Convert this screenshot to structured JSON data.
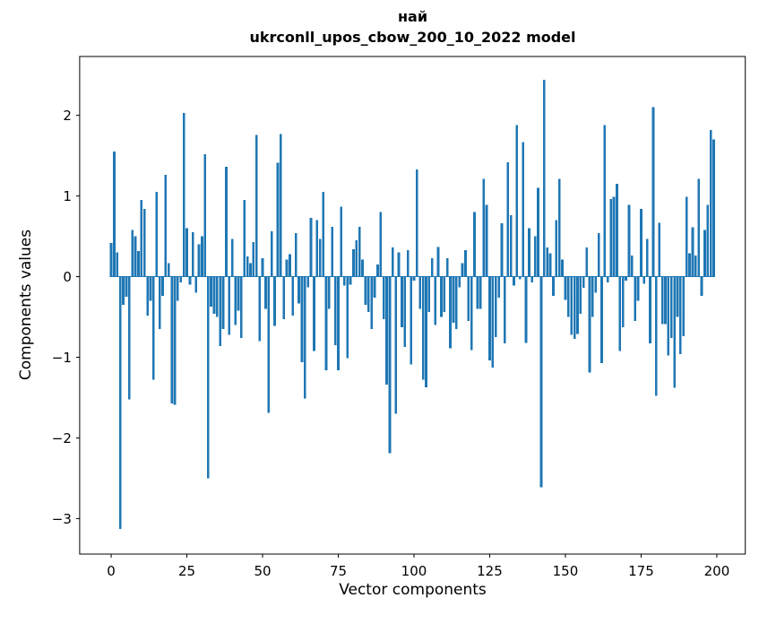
{
  "chart": {
    "title_line1": "най",
    "title_line2": "ukrconll_upos_cbow_200_10_2022 model",
    "xlabel": "Vector components",
    "ylabel": "Components values"
  },
  "chart_data": {
    "type": "bar",
    "title": "най\nukrconll_upos_cbow_200_10_2022 model",
    "xlabel": "Vector components",
    "ylabel": "Components values",
    "x_start": 0,
    "n_bars": 200,
    "bar_color": "#1f77b4",
    "axis_color": "#000000",
    "grid": false,
    "legend": null,
    "xticks": [
      0,
      25,
      50,
      75,
      100,
      125,
      150,
      175,
      200
    ],
    "yticks": [
      -3,
      -2,
      -1,
      0,
      1,
      2
    ],
    "xlim": [
      -10.4,
      209.4
    ],
    "ylim": [
      -3.44,
      2.73
    ],
    "values": [
      0.42,
      1.55,
      0.3,
      -3.13,
      -0.35,
      -0.25,
      -1.52,
      0.58,
      0.5,
      0.32,
      0.95,
      0.84,
      -0.48,
      -0.3,
      -1.28,
      1.05,
      -0.65,
      -0.24,
      1.26,
      0.17,
      -1.57,
      -1.59,
      -0.3,
      -0.07,
      2.03,
      0.6,
      -0.1,
      0.55,
      -0.2,
      0.4,
      0.5,
      1.52,
      -2.5,
      -0.37,
      -0.46,
      -0.5,
      -0.86,
      -0.65,
      1.36,
      -0.72,
      0.47,
      -0.6,
      -0.42,
      -0.76,
      0.95,
      0.25,
      0.17,
      0.43,
      1.76,
      -0.8,
      0.23,
      -0.4,
      -1.69,
      0.56,
      -0.61,
      1.41,
      1.77,
      -0.53,
      0.21,
      0.28,
      -0.48,
      0.54,
      -0.33,
      -1.06,
      -1.51,
      -0.13,
      0.73,
      -0.92,
      0.7,
      0.47,
      1.05,
      -1.16,
      -0.4,
      0.62,
      -0.85,
      -1.16,
      0.87,
      -0.11,
      -1.01,
      -0.1,
      0.34,
      0.45,
      0.62,
      0.21,
      -0.35,
      -0.44,
      -0.65,
      -0.26,
      0.15,
      0.8,
      -0.53,
      -1.34,
      -2.19,
      0.36,
      -1.7,
      0.3,
      -0.63,
      -0.87,
      0.33,
      -1.09,
      -0.05,
      1.33,
      -0.4,
      -1.28,
      -1.37,
      -0.44,
      0.23,
      -0.6,
      0.37,
      -0.5,
      -0.44,
      0.23,
      -0.89,
      -0.57,
      -0.65,
      -0.13,
      0.17,
      0.33,
      -0.55,
      -0.91,
      0.8,
      -0.4,
      -0.4,
      1.21,
      0.89,
      -1.04,
      -1.13,
      -0.75,
      -0.26,
      0.66,
      -0.83,
      1.42,
      0.76,
      -0.11,
      1.88,
      -0.03,
      1.67,
      -0.82,
      0.6,
      -0.07,
      0.5,
      1.1,
      -2.61,
      2.44,
      0.36,
      0.29,
      -0.24,
      0.7,
      1.21,
      0.21,
      -0.29,
      -0.5,
      -0.72,
      -0.77,
      -0.71,
      -0.46,
      -0.14,
      0.36,
      -1.19,
      -0.5,
      -0.2,
      0.54,
      -1.07,
      1.88,
      -0.07,
      0.96,
      0.99,
      1.15,
      -0.92,
      -0.63,
      -0.05,
      0.89,
      0.26,
      -0.55,
      -0.3,
      0.84,
      -0.09,
      0.47,
      -0.83,
      2.1,
      -1.48,
      0.67,
      -0.59,
      -0.59,
      -0.98,
      -0.76,
      -1.38,
      -0.5,
      -0.96,
      -0.74,
      0.99,
      0.29,
      0.61,
      0.26,
      1.21,
      -0.24,
      0.58,
      0.89,
      1.82,
      1.7
    ]
  }
}
